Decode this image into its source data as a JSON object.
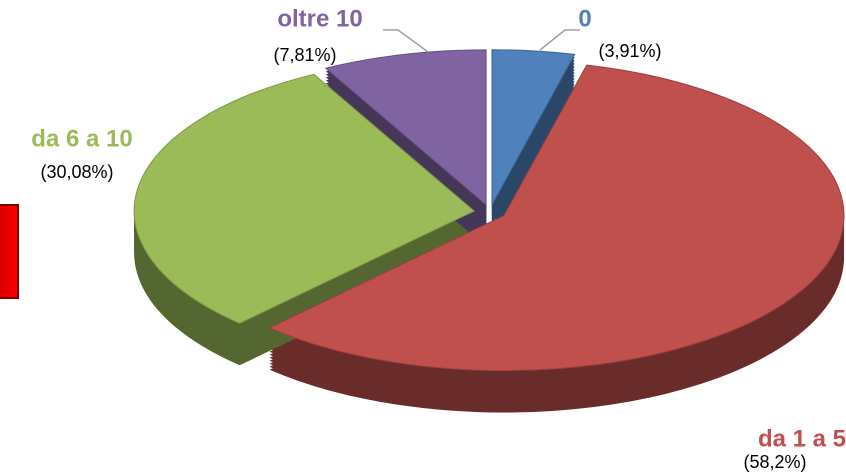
{
  "chart_data": {
    "type": "pie",
    "categories": [
      "0",
      "da 1 a 5",
      "da 6 a 10",
      "oltre 10"
    ],
    "values": [
      3.91,
      58.2,
      30.08,
      7.81
    ],
    "value_labels": [
      "(3,91%)",
      "(58,2%)",
      "(30,08%)",
      "(7,81%)"
    ],
    "colors": [
      "#4f81bd",
      "#c0504d",
      "#9bbb59",
      "#8064a2"
    ]
  }
}
